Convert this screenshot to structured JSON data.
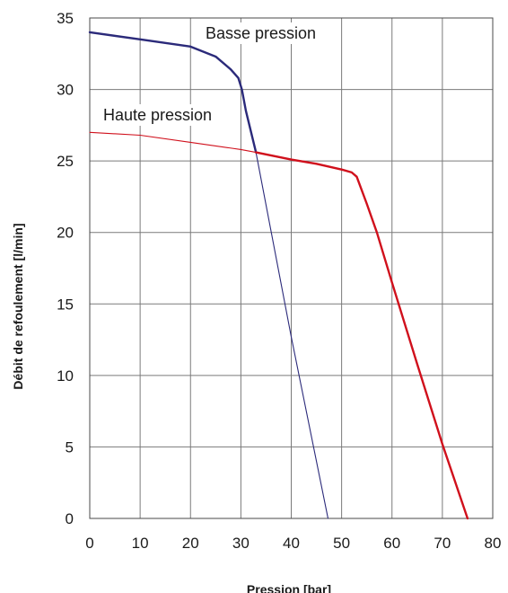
{
  "chart_data": {
    "type": "line",
    "xlabel": "Pression [bar]",
    "ylabel": "Débit de refoulement [l/min]",
    "xlim": [
      0,
      80
    ],
    "ylim": [
      0,
      35
    ],
    "xticks": [
      0,
      10,
      20,
      30,
      40,
      50,
      60,
      70,
      80
    ],
    "yticks": [
      0,
      5,
      10,
      15,
      20,
      25,
      30,
      35
    ],
    "grid": true,
    "colors": {
      "basse": "#2b2a7a",
      "haute": "#d0101c",
      "grid": "#7a7a7a"
    },
    "annotations": [
      {
        "id": "basse",
        "text": "Basse pression"
      },
      {
        "id": "haute",
        "text": "Haute pression"
      }
    ],
    "series": [
      {
        "id": "basse-thick",
        "color": "basse",
        "weight": "thick",
        "x": [
          0,
          10,
          20,
          25,
          28,
          29.5,
          30.2,
          31,
          33
        ],
        "y": [
          34,
          33.5,
          33,
          32.3,
          31.4,
          30.8,
          30,
          28.5,
          25.6
        ]
      },
      {
        "id": "basse-thin",
        "color": "basse",
        "weight": "thin",
        "x": [
          33,
          40,
          47.3
        ],
        "y": [
          25.6,
          12.7,
          0
        ]
      },
      {
        "id": "haute-thin",
        "color": "haute",
        "weight": "thin",
        "x": [
          0,
          10,
          20,
          30,
          33
        ],
        "y": [
          27,
          26.8,
          26.3,
          25.8,
          25.6
        ]
      },
      {
        "id": "haute-thick",
        "color": "haute",
        "weight": "thick",
        "x": [
          33,
          40,
          45,
          50,
          52,
          53,
          55,
          57,
          60,
          65,
          70,
          75
        ],
        "y": [
          25.6,
          25.1,
          24.8,
          24.4,
          24.2,
          23.9,
          22,
          20,
          16.5,
          10.8,
          5.2,
          0
        ]
      }
    ]
  }
}
